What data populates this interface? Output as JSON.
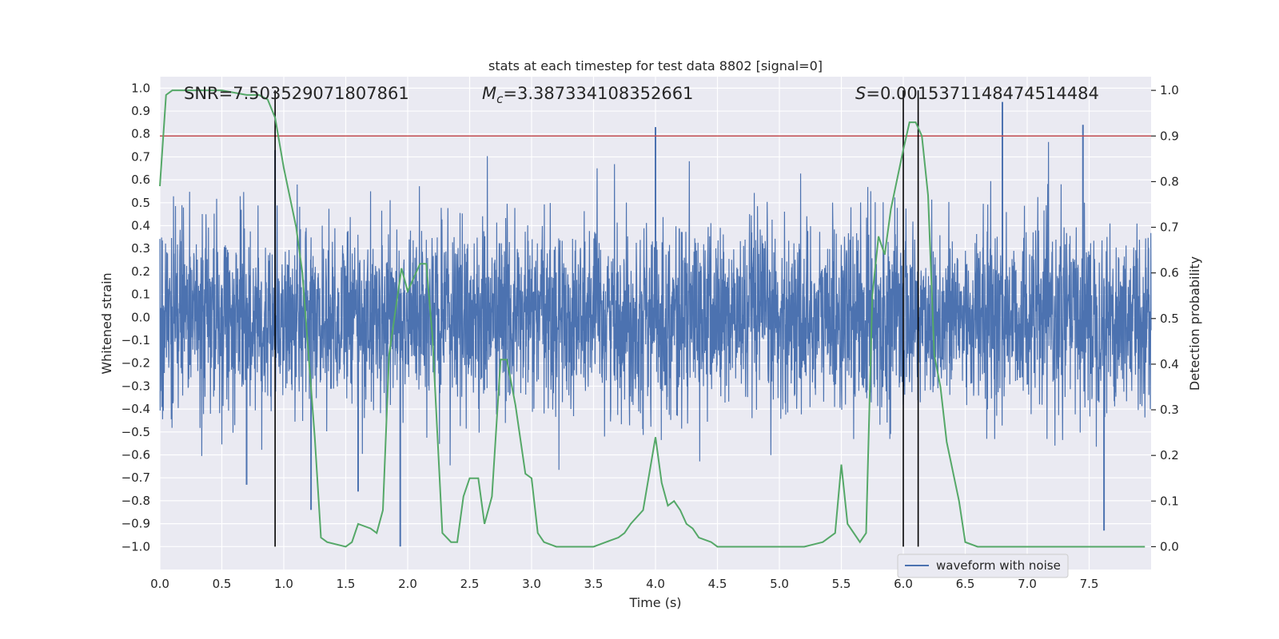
{
  "chart_data": {
    "type": "line",
    "title": "stats at each timestep for test data 8802 [signal=0]",
    "xlabel": "Time (s)",
    "ylabel": "Whitened strain",
    "y2label": "Detection probability",
    "xlim": [
      0,
      8
    ],
    "ylim": [
      -1.1,
      1.05
    ],
    "y2lim": [
      -0.05,
      1.03
    ],
    "xticks": [
      "0.0",
      "0.5",
      "1.0",
      "1.5",
      "2.0",
      "2.5",
      "3.0",
      "3.5",
      "4.0",
      "4.5",
      "5.0",
      "5.5",
      "6.0",
      "6.5",
      "7.0",
      "7.5"
    ],
    "yticks": [
      "1.0",
      "0.9",
      "0.8",
      "0.7",
      "0.6",
      "0.5",
      "0.4",
      "0.3",
      "0.2",
      "0.1",
      "0.0",
      "-0.1",
      "-0.2",
      "-0.3",
      "-0.4",
      "-0.5",
      "-0.6",
      "-0.7",
      "-0.8",
      "-0.9",
      "-1.0"
    ],
    "y2ticks": [
      "1.0",
      "0.9",
      "0.8",
      "0.7",
      "0.6",
      "0.5",
      "0.4",
      "0.3",
      "0.2",
      "0.1",
      "0.0"
    ],
    "grid": true,
    "legend_placement": "lower-right",
    "annotations": {
      "snr": "SNR=7.503529071807861",
      "mc_symbol": "M",
      "mc_sub": "c",
      "mc_value": "=3.387334108352661",
      "s_symbol": "S",
      "s_value": "=0.0015371148474514484"
    },
    "threshold": {
      "value": 0.9,
      "axis": "right",
      "color": "#c44e52"
    },
    "vlines": [
      0.93,
      6.0,
      6.12
    ],
    "series": [
      {
        "name": "waveform with noise",
        "kind": "noise",
        "color": "#4c72b0",
        "x_range": [
          0,
          8
        ],
        "amplitude": 0.2,
        "spikes": [
          {
            "x": 0.93,
            "y": 0.73
          },
          {
            "x": 4.0,
            "y": 0.83
          },
          {
            "x": 6.8,
            "y": 0.94
          },
          {
            "x": 7.45,
            "y": 0.84
          },
          {
            "x": 1.94,
            "y": -1.0
          },
          {
            "x": 7.62,
            "y": -0.93
          },
          {
            "x": 1.22,
            "y": -0.84
          },
          {
            "x": 1.6,
            "y": -0.76
          },
          {
            "x": 0.7,
            "y": -0.73
          }
        ]
      },
      {
        "name": "",
        "axis": "right",
        "color": "#55a868",
        "x": [
          0.0,
          0.05,
          0.1,
          0.2,
          0.3,
          0.5,
          0.7,
          0.8,
          0.87,
          0.93,
          1.0,
          1.1,
          1.15,
          1.2,
          1.25,
          1.3,
          1.35,
          1.5,
          1.55,
          1.6,
          1.7,
          1.75,
          1.8,
          1.85,
          1.95,
          2.0,
          2.1,
          2.15,
          2.2,
          2.28,
          2.35,
          2.4,
          2.45,
          2.5,
          2.57,
          2.62,
          2.68,
          2.75,
          2.8,
          2.87,
          2.95,
          3.0,
          3.05,
          3.1,
          3.2,
          3.4,
          3.5,
          3.6,
          3.7,
          3.75,
          3.8,
          3.9,
          4.0,
          4.05,
          4.1,
          4.15,
          4.2,
          4.25,
          4.3,
          4.35,
          4.45,
          4.5,
          4.6,
          4.8,
          5.0,
          5.2,
          5.35,
          5.45,
          5.5,
          5.55,
          5.65,
          5.7,
          5.75,
          5.8,
          5.85,
          5.9,
          6.0,
          6.05,
          6.1,
          6.15,
          6.2,
          6.25,
          6.3,
          6.35,
          6.45,
          6.5,
          6.6,
          7.0,
          7.2,
          7.5,
          7.95
        ],
        "y": [
          0.79,
          0.99,
          1.0,
          1.0,
          1.0,
          1.0,
          0.99,
          0.99,
          0.98,
          0.94,
          0.83,
          0.7,
          0.6,
          0.42,
          0.24,
          0.02,
          0.01,
          0.0,
          0.01,
          0.05,
          0.04,
          0.03,
          0.08,
          0.42,
          0.61,
          0.56,
          0.62,
          0.62,
          0.46,
          0.03,
          0.01,
          0.01,
          0.11,
          0.15,
          0.15,
          0.05,
          0.11,
          0.41,
          0.41,
          0.31,
          0.16,
          0.15,
          0.03,
          0.01,
          0.0,
          0.0,
          0.0,
          0.01,
          0.02,
          0.03,
          0.05,
          0.08,
          0.24,
          0.14,
          0.09,
          0.1,
          0.08,
          0.05,
          0.04,
          0.02,
          0.01,
          0.0,
          0.0,
          0.0,
          0.0,
          0.0,
          0.01,
          0.03,
          0.18,
          0.05,
          0.01,
          0.03,
          0.55,
          0.68,
          0.64,
          0.74,
          0.87,
          0.93,
          0.93,
          0.9,
          0.77,
          0.42,
          0.35,
          0.23,
          0.1,
          0.01,
          0.0,
          0.0,
          0.0,
          0.0,
          0.0
        ]
      }
    ]
  }
}
